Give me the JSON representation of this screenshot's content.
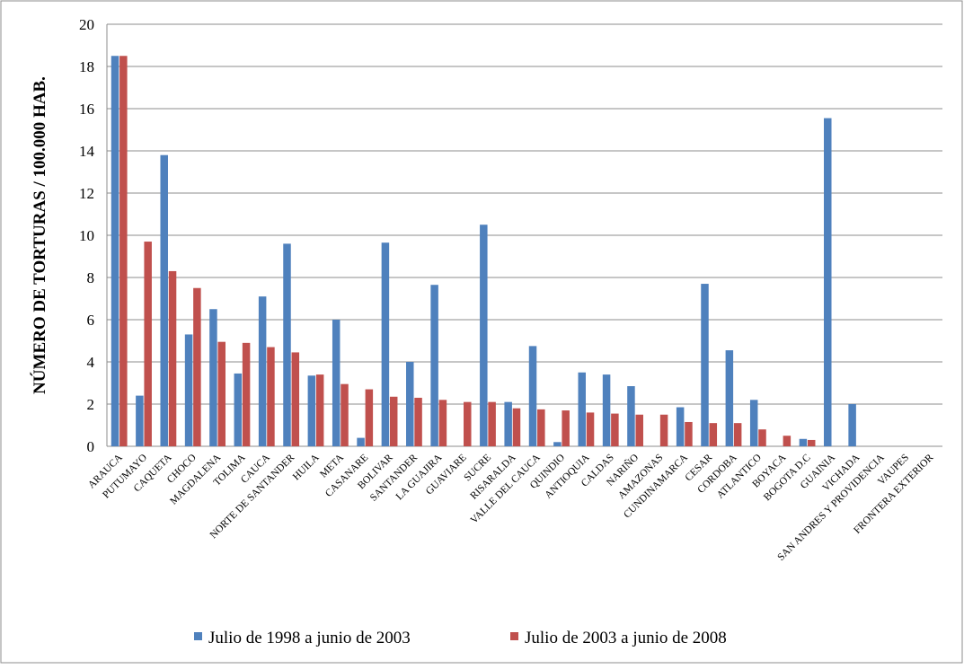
{
  "chart_data": {
    "type": "bar",
    "title": "",
    "xlabel": "",
    "ylabel": "NÚMERO DE TORTURAS / 100.000 HAB.",
    "ylim": [
      0,
      20
    ],
    "yticks": [
      0,
      2,
      4,
      6,
      8,
      10,
      12,
      14,
      16,
      18,
      20
    ],
    "grid": true,
    "legend_position": "bottom",
    "categories": [
      "ARAUCA",
      "PUTUMAYO",
      "CAQUETA",
      "CHOCO",
      "MAGDALENA",
      "TOLIMA",
      "CAUCA",
      "NORTE DE SANTANDER",
      "HUILA",
      "META",
      "CASANARE",
      "BOLIVAR",
      "SANTANDER",
      "LA GUAJIRA",
      "GUAVIARE",
      "SUCRE",
      "RISARALDA",
      "VALLE DEL CAUCA",
      "QUINDIO",
      "ANTIOQUIA",
      "CALDAS",
      "NARIÑO",
      "AMAZONAS",
      "CUNDINAMARCA",
      "CESAR",
      "CORDOBA",
      "ATLANTICO",
      "BOYACA",
      "BOGOTA D.C",
      "GUAINIA",
      "VICHADA",
      "SAN ANDRES Y PROVIDENCIA",
      "VAUPES",
      "FRONTERA EXTERIOR"
    ],
    "series": [
      {
        "name": "Julio de 1998 a junio de 2003",
        "color": "#4f81bd",
        "values": [
          18.5,
          2.4,
          13.8,
          5.3,
          6.5,
          3.45,
          7.1,
          9.6,
          3.35,
          6.0,
          0.4,
          9.65,
          4.0,
          7.65,
          0,
          10.5,
          2.1,
          4.75,
          0.2,
          3.5,
          3.4,
          2.85,
          0,
          1.85,
          7.7,
          4.55,
          2.2,
          0,
          0.35,
          15.55,
          2.0,
          0,
          0,
          0
        ]
      },
      {
        "name": "Julio de 2003 a junio de 2008",
        "color": "#c0504d",
        "values": [
          18.5,
          9.7,
          8.3,
          7.5,
          4.95,
          4.9,
          4.7,
          4.45,
          3.4,
          2.95,
          2.7,
          2.35,
          2.3,
          2.2,
          2.1,
          2.1,
          1.8,
          1.75,
          1.7,
          1.6,
          1.55,
          1.5,
          1.5,
          1.15,
          1.1,
          1.1,
          0.8,
          0.5,
          0.3,
          0,
          0,
          0,
          0,
          0
        ]
      }
    ]
  }
}
